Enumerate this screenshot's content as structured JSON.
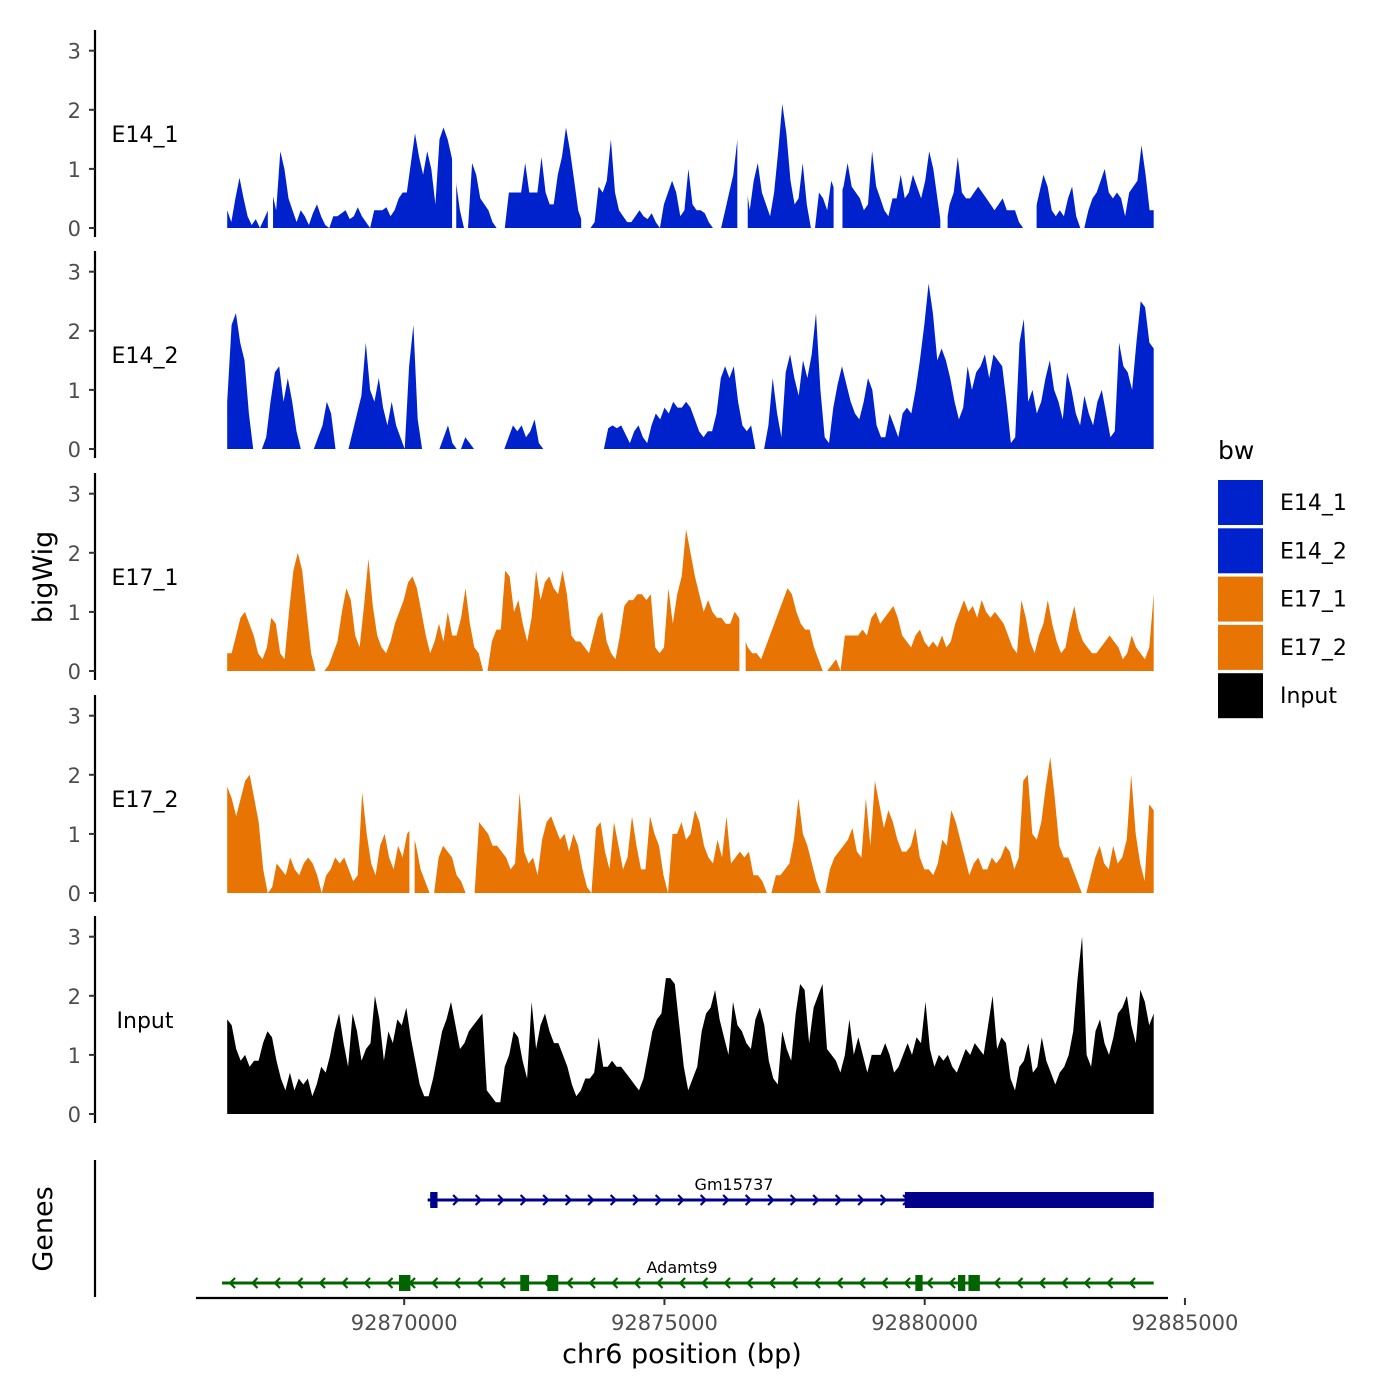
{
  "chart_data": {
    "type": "area",
    "chromosome": "chr6",
    "xlabel": "chr6 position (bp)",
    "ylabel": "bigWig",
    "xlim": [
      92866600,
      92884400
    ],
    "ylim": [
      0,
      3.3
    ],
    "x_ticks": [
      92870000,
      92875000,
      92880000,
      92885000
    ],
    "x_tick_labels": [
      "92870000",
      "92875000",
      "92880000",
      "92885000"
    ],
    "y_ticks": [
      0,
      1,
      2,
      3
    ],
    "y_tick_labels": [
      "0",
      "1",
      "2",
      "3"
    ],
    "legend": {
      "title": "bw",
      "position": "right",
      "entries": [
        {
          "label": "E14_1",
          "color": "#0022cc"
        },
        {
          "label": "E14_2",
          "color": "#0022cc"
        },
        {
          "label": "E17_1",
          "color": "#e87404"
        },
        {
          "label": "E17_2",
          "color": "#e87404"
        },
        {
          "label": "Input",
          "color": "#000000"
        }
      ]
    },
    "series": [
      {
        "name": "E14_1",
        "color": "#0022cc",
        "values": [
          0.3,
          0.1,
          0.5,
          0.85,
          0.5,
          0.2,
          0.05,
          0.15,
          0.0,
          0.15,
          0.3,
          0.6,
          0.3,
          1.3,
          1.0,
          0.5,
          0.3,
          0.1,
          0.3,
          0.2,
          0.05,
          0.25,
          0.4,
          0.2,
          0.05,
          0.0,
          0.2,
          0.2,
          0.25,
          0.3,
          0.15,
          0.2,
          0.35,
          0.2,
          0.1,
          0.0,
          0.3,
          0.3,
          0.3,
          0.35,
          0.2,
          0.3,
          0.5,
          0.6,
          0.6,
          1.1,
          1.6,
          1.2,
          0.9,
          1.3,
          1.0,
          0.4,
          1.5,
          1.7,
          1.5,
          1.2,
          0.8,
          0.3,
          0.0,
          0.0,
          1.1,
          0.9,
          0.5,
          0.4,
          0.3,
          0.1,
          0.0,
          0.0,
          0.0,
          0.6,
          0.6,
          0.6,
          0.6,
          1.1,
          0.6,
          0.6,
          0.6,
          1.2,
          0.6,
          0.4,
          0.4,
          0.9,
          1.2,
          1.7,
          1.3,
          0.8,
          0.3,
          0.1,
          0.0,
          0.0,
          0.1,
          0.7,
          0.6,
          0.8,
          1.5,
          0.6,
          0.3,
          0.2,
          0.1,
          0.1,
          0.2,
          0.3,
          0.2,
          0.15,
          0.25,
          0.1,
          0.0,
          0.4,
          0.6,
          0.8,
          0.6,
          0.2,
          0.3,
          1.0,
          0.4,
          0.3,
          0.3,
          0.25,
          0.1,
          0.0,
          0.0,
          0.0,
          0.3,
          0.6,
          0.9,
          1.5,
          1.0,
          0.8,
          0.3,
          0.8,
          1.1,
          0.6,
          0.4,
          0.2,
          0.6,
          1.3,
          2.1,
          1.6,
          0.8,
          0.4,
          0.5,
          1.1,
          0.4,
          0.0,
          0.0,
          0.6,
          0.5,
          0.3,
          0.8,
          0.6,
          0.5,
          0.7,
          1.1,
          0.7,
          0.6,
          0.5,
          0.3,
          0.4,
          1.3,
          0.7,
          0.5,
          0.3,
          0.2,
          0.5,
          0.5,
          0.9,
          0.5,
          0.6,
          0.9,
          0.7,
          0.5,
          0.8,
          1.3,
          1.0,
          0.5,
          0.0,
          0.0,
          0.4,
          0.6,
          1.2,
          0.6,
          0.5,
          0.5,
          0.6,
          0.7,
          0.6,
          0.5,
          0.4,
          0.3,
          0.4,
          0.5,
          0.3,
          0.3,
          0.3,
          0.1,
          0.0,
          0.0,
          0.0,
          0.3,
          0.6,
          0.9,
          0.7,
          0.3,
          0.2,
          0.3,
          0.2,
          0.5,
          0.7,
          0.2,
          0.0,
          0.0,
          0.3,
          0.5,
          0.6,
          0.8,
          1.0,
          0.6,
          0.5,
          0.6,
          0.5,
          0.2,
          0.6,
          0.7,
          0.8,
          1.4,
          0.9,
          0.3,
          0.3
        ],
        "gaps": [
          [
            92867380,
            92867480
          ],
          [
            92870920,
            92871000
          ],
          [
            92873400,
            92873520
          ],
          [
            92876400,
            92876600
          ],
          [
            92878250,
            92878420
          ],
          [
            92880300,
            92880440
          ],
          [
            92882020,
            92882150
          ]
        ]
      },
      {
        "name": "E14_2",
        "color": "#0022cc",
        "values": [
          0.8,
          2.1,
          2.3,
          1.8,
          1.5,
          0.6,
          0.0,
          0.0,
          0.0,
          0.2,
          0.8,
          1.3,
          1.4,
          0.8,
          1.2,
          0.8,
          0.3,
          0.0,
          0.0,
          0.0,
          0.0,
          0.2,
          0.4,
          0.8,
          0.6,
          0.0,
          0.0,
          0.0,
          0.0,
          0.3,
          0.6,
          0.9,
          1.8,
          1.0,
          0.8,
          1.2,
          0.7,
          0.4,
          0.8,
          0.4,
          0.2,
          0.0,
          1.4,
          2.1,
          0.5,
          0.0,
          0.0,
          0.0,
          0.0,
          0.0,
          0.2,
          0.4,
          0.1,
          0.0,
          0.0,
          0.2,
          0.1,
          0.0,
          0.0,
          0.0,
          0.0,
          0.0,
          0.0,
          0.0,
          0.0,
          0.2,
          0.4,
          0.3,
          0.4,
          0.2,
          0.3,
          0.5,
          0.1,
          0.0,
          0.0,
          0.0,
          0.0,
          0.0,
          0.0,
          0.0,
          0.0,
          0.0,
          0.0,
          0.0,
          0.0,
          0.0,
          0.0,
          0.0,
          0.35,
          0.4,
          0.35,
          0.4,
          0.25,
          0.1,
          0.3,
          0.4,
          0.2,
          0.1,
          0.4,
          0.6,
          0.5,
          0.7,
          0.6,
          0.8,
          0.7,
          0.7,
          0.8,
          0.7,
          0.5,
          0.3,
          0.2,
          0.3,
          0.3,
          0.6,
          1.2,
          1.4,
          1.2,
          1.4,
          0.8,
          0.4,
          0.3,
          0.4,
          0.0,
          0.0,
          0.0,
          0.4,
          1.2,
          0.6,
          0.2,
          1.3,
          1.6,
          1.2,
          0.9,
          1.5,
          1.2,
          1.6,
          2.3,
          1.0,
          0.2,
          0.1,
          0.7,
          1.1,
          1.4,
          1.1,
          0.8,
          0.6,
          0.5,
          0.8,
          1.2,
          1.0,
          0.4,
          0.2,
          0.2,
          0.6,
          0.4,
          0.2,
          0.6,
          0.7,
          0.6,
          1.0,
          1.5,
          2.1,
          2.8,
          2.3,
          1.5,
          1.7,
          1.5,
          1.2,
          0.8,
          0.5,
          0.7,
          1.4,
          1.0,
          1.3,
          1.4,
          1.6,
          1.2,
          1.6,
          1.5,
          1.4,
          0.8,
          0.1,
          0.2,
          1.8,
          2.2,
          0.8,
          1.0,
          0.6,
          0.8,
          1.2,
          1.5,
          1.0,
          0.8,
          0.5,
          1.3,
          1.0,
          0.6,
          0.4,
          0.9,
          0.6,
          0.4,
          0.8,
          1.0,
          0.6,
          0.2,
          0.3,
          1.8,
          1.4,
          1.3,
          1.0,
          1.8,
          2.5,
          2.4,
          1.8,
          1.7
        ],
        "gaps": []
      },
      {
        "name": "E17_1",
        "color": "#e87404",
        "values": [
          0.3,
          0.3,
          0.6,
          0.9,
          1.0,
          0.8,
          0.6,
          0.3,
          0.2,
          0.4,
          0.9,
          0.8,
          0.3,
          0.2,
          1.0,
          1.7,
          2.0,
          1.7,
          1.0,
          0.3,
          0.0,
          0.0,
          0.0,
          0.1,
          0.3,
          0.5,
          1.0,
          1.4,
          1.2,
          0.6,
          0.4,
          1.1,
          1.9,
          1.1,
          0.6,
          0.4,
          0.3,
          0.5,
          0.8,
          1.0,
          1.2,
          1.5,
          1.6,
          1.4,
          1.0,
          0.6,
          0.3,
          0.5,
          0.8,
          0.5,
          1.0,
          0.6,
          0.6,
          0.9,
          1.4,
          0.8,
          0.4,
          0.3,
          0.0,
          0.0,
          0.5,
          0.7,
          0.7,
          1.7,
          1.6,
          1.0,
          1.2,
          0.8,
          0.5,
          0.9,
          1.7,
          1.2,
          1.5,
          1.6,
          1.4,
          1.3,
          1.7,
          1.3,
          0.6,
          0.5,
          0.5,
          0.4,
          0.3,
          0.6,
          0.9,
          1.0,
          0.5,
          0.3,
          0.2,
          0.6,
          1.1,
          1.2,
          1.2,
          1.3,
          1.3,
          1.2,
          1.3,
          0.4,
          0.3,
          0.4,
          1.4,
          0.8,
          1.3,
          1.6,
          2.4,
          2.0,
          1.6,
          1.3,
          1.0,
          1.2,
          1.0,
          0.9,
          0.9,
          0.8,
          0.8,
          1.0,
          0.9,
          0.6,
          0.4,
          0.3,
          0.3,
          0.2,
          0.4,
          0.6,
          0.8,
          1.0,
          1.2,
          1.4,
          1.3,
          1.0,
          0.8,
          0.7,
          0.7,
          0.4,
          0.2,
          0.0,
          0.0,
          0.1,
          0.2,
          0.0,
          0.6,
          0.6,
          0.6,
          0.6,
          0.7,
          0.6,
          0.9,
          1.0,
          0.8,
          0.9,
          1.0,
          1.1,
          0.9,
          0.6,
          0.5,
          0.4,
          0.6,
          0.7,
          0.5,
          0.4,
          0.5,
          0.4,
          0.6,
          0.4,
          0.5,
          0.8,
          1.0,
          1.2,
          1.0,
          1.1,
          0.9,
          1.2,
          1.0,
          0.9,
          1.0,
          0.9,
          0.8,
          0.6,
          0.4,
          0.3,
          1.2,
          0.9,
          0.5,
          0.3,
          0.6,
          0.8,
          1.2,
          0.8,
          0.5,
          0.3,
          0.4,
          0.8,
          1.1,
          0.7,
          0.5,
          0.4,
          0.3,
          0.3,
          0.4,
          0.5,
          0.6,
          0.5,
          0.4,
          0.2,
          0.3,
          0.6,
          0.4,
          0.3,
          0.2,
          0.4,
          1.3
        ],
        "gaps": [
          [
            92876440,
            92876560
          ]
        ]
      },
      {
        "name": "E17_2",
        "color": "#e87404",
        "values": [
          1.8,
          1.6,
          1.3,
          1.6,
          1.9,
          2.0,
          1.6,
          1.2,
          0.4,
          0.0,
          0.1,
          0.5,
          0.4,
          0.3,
          0.6,
          0.4,
          0.3,
          0.5,
          0.6,
          0.5,
          0.3,
          0.0,
          0.3,
          0.4,
          0.6,
          0.5,
          0.6,
          0.4,
          0.2,
          0.3,
          1.7,
          1.0,
          0.5,
          0.3,
          0.8,
          1.0,
          0.6,
          0.4,
          0.8,
          0.6,
          1.0,
          1.1,
          0.8,
          0.4,
          0.2,
          0.0,
          0.0,
          0.6,
          0.8,
          0.7,
          0.6,
          0.3,
          0.2,
          0.0,
          0.0,
          0.0,
          1.2,
          1.1,
          1.0,
          0.8,
          0.8,
          0.7,
          0.6,
          0.4,
          0.5,
          1.7,
          0.7,
          0.5,
          0.6,
          0.3,
          0.9,
          1.2,
          1.3,
          1.1,
          0.9,
          1.0,
          0.7,
          1.0,
          0.8,
          0.4,
          0.1,
          0.0,
          1.1,
          1.2,
          0.7,
          0.4,
          1.2,
          0.8,
          0.4,
          0.6,
          1.3,
          0.8,
          0.4,
          0.4,
          1.3,
          1.0,
          0.8,
          0.3,
          0.0,
          1.0,
          1.0,
          1.2,
          0.9,
          1.0,
          1.4,
          1.2,
          0.8,
          0.6,
          0.5,
          0.9,
          0.6,
          1.3,
          0.5,
          0.6,
          0.7,
          0.6,
          0.7,
          0.3,
          0.3,
          0.2,
          0.0,
          0.0,
          0.3,
          0.3,
          0.4,
          0.5,
          0.9,
          1.6,
          1.0,
          0.8,
          0.5,
          0.2,
          0.0,
          0.0,
          0.4,
          0.6,
          0.7,
          0.8,
          0.9,
          1.1,
          0.7,
          0.6,
          1.6,
          0.8,
          1.9,
          1.5,
          1.1,
          1.4,
          1.2,
          0.9,
          0.7,
          0.7,
          0.8,
          1.1,
          0.6,
          0.4,
          0.4,
          0.3,
          0.5,
          0.9,
          0.8,
          1.4,
          1.2,
          0.9,
          0.6,
          0.3,
          0.5,
          0.6,
          0.4,
          0.4,
          0.6,
          0.5,
          0.6,
          0.8,
          0.7,
          0.4,
          0.6,
          1.9,
          2.0,
          1.0,
          0.9,
          1.2,
          1.8,
          2.3,
          1.6,
          0.8,
          0.6,
          0.6,
          0.4,
          0.2,
          0.0,
          0.0,
          0.3,
          0.6,
          0.8,
          0.5,
          0.4,
          0.8,
          0.5,
          0.6,
          0.9,
          2.0,
          1.0,
          0.5,
          0.2,
          1.5,
          1.4
        ],
        "gaps": [
          [
            92870100,
            92870200
          ]
        ]
      },
      {
        "name": "Input",
        "color": "#000000",
        "values": [
          1.6,
          1.5,
          1.1,
          0.9,
          1.0,
          0.8,
          0.9,
          0.9,
          1.2,
          1.4,
          1.3,
          0.9,
          0.6,
          0.4,
          0.7,
          0.4,
          0.6,
          0.5,
          0.6,
          0.3,
          0.5,
          0.8,
          0.7,
          1.0,
          1.4,
          1.7,
          1.2,
          0.8,
          1.7,
          1.4,
          0.9,
          1.1,
          1.2,
          2.0,
          1.6,
          0.9,
          1.4,
          1.2,
          1.6,
          1.5,
          1.8,
          1.3,
          0.9,
          0.5,
          0.3,
          0.3,
          0.6,
          1.0,
          1.4,
          1.6,
          1.9,
          1.5,
          1.1,
          1.2,
          1.4,
          1.5,
          1.6,
          1.7,
          0.4,
          0.3,
          0.2,
          0.2,
          0.8,
          1.0,
          1.4,
          1.3,
          0.9,
          0.6,
          1.9,
          1.1,
          1.5,
          1.7,
          1.4,
          1.2,
          1.2,
          1.0,
          0.8,
          0.5,
          0.3,
          0.4,
          0.6,
          0.6,
          0.7,
          1.3,
          0.8,
          0.8,
          0.9,
          0.8,
          0.8,
          0.7,
          0.6,
          0.5,
          0.4,
          0.6,
          1.0,
          1.4,
          1.6,
          1.7,
          2.3,
          2.3,
          2.2,
          1.5,
          0.8,
          0.4,
          0.6,
          0.8,
          1.4,
          1.7,
          1.8,
          2.1,
          1.6,
          1.3,
          1.0,
          1.9,
          1.5,
          1.4,
          1.2,
          1.1,
          1.6,
          1.8,
          1.5,
          0.9,
          0.6,
          0.5,
          1.4,
          1.1,
          0.9,
          1.7,
          2.2,
          2.1,
          1.2,
          1.8,
          2.0,
          2.2,
          1.1,
          1.0,
          0.9,
          0.7,
          1.0,
          1.6,
          1.0,
          1.3,
          1.0,
          0.7,
          1.0,
          1.0,
          1.0,
          1.2,
          1.0,
          0.7,
          0.8,
          1.0,
          1.2,
          1.0,
          1.3,
          1.2,
          1.9,
          1.1,
          0.8,
          1.0,
          0.9,
          1.0,
          0.8,
          0.7,
          0.9,
          1.1,
          1.0,
          1.2,
          1.1,
          1.0,
          1.5,
          2.0,
          1.1,
          1.3,
          1.2,
          0.6,
          0.4,
          0.8,
          0.9,
          1.2,
          0.7,
          0.8,
          1.3,
          0.9,
          0.7,
          0.5,
          0.7,
          0.8,
          1.0,
          1.4,
          2.3,
          3.0,
          1.0,
          0.8,
          1.4,
          1.6,
          1.2,
          1.0,
          1.3,
          1.7,
          1.8,
          2.0,
          1.5,
          1.2,
          2.1,
          1.9,
          1.5,
          1.7
        ],
        "gaps": []
      }
    ],
    "genes_track_label": "Genes",
    "genes": [
      {
        "name": "Gm15737",
        "strand": "+",
        "start": 92870450,
        "end": 92884400,
        "color": "#00008b",
        "exons": [
          [
            92870500,
            92870640
          ],
          [
            92879620,
            92884400
          ]
        ]
      },
      {
        "name": "Adamts9",
        "strand": "-",
        "start": 92866500,
        "end": 92884400,
        "color": "#006400",
        "exons": [
          [
            92869900,
            92870120
          ],
          [
            92872230,
            92872400
          ],
          [
            92872750,
            92872960
          ],
          [
            92879820,
            92879960
          ],
          [
            92880640,
            92880780
          ],
          [
            92880840,
            92881060
          ]
        ]
      }
    ]
  }
}
